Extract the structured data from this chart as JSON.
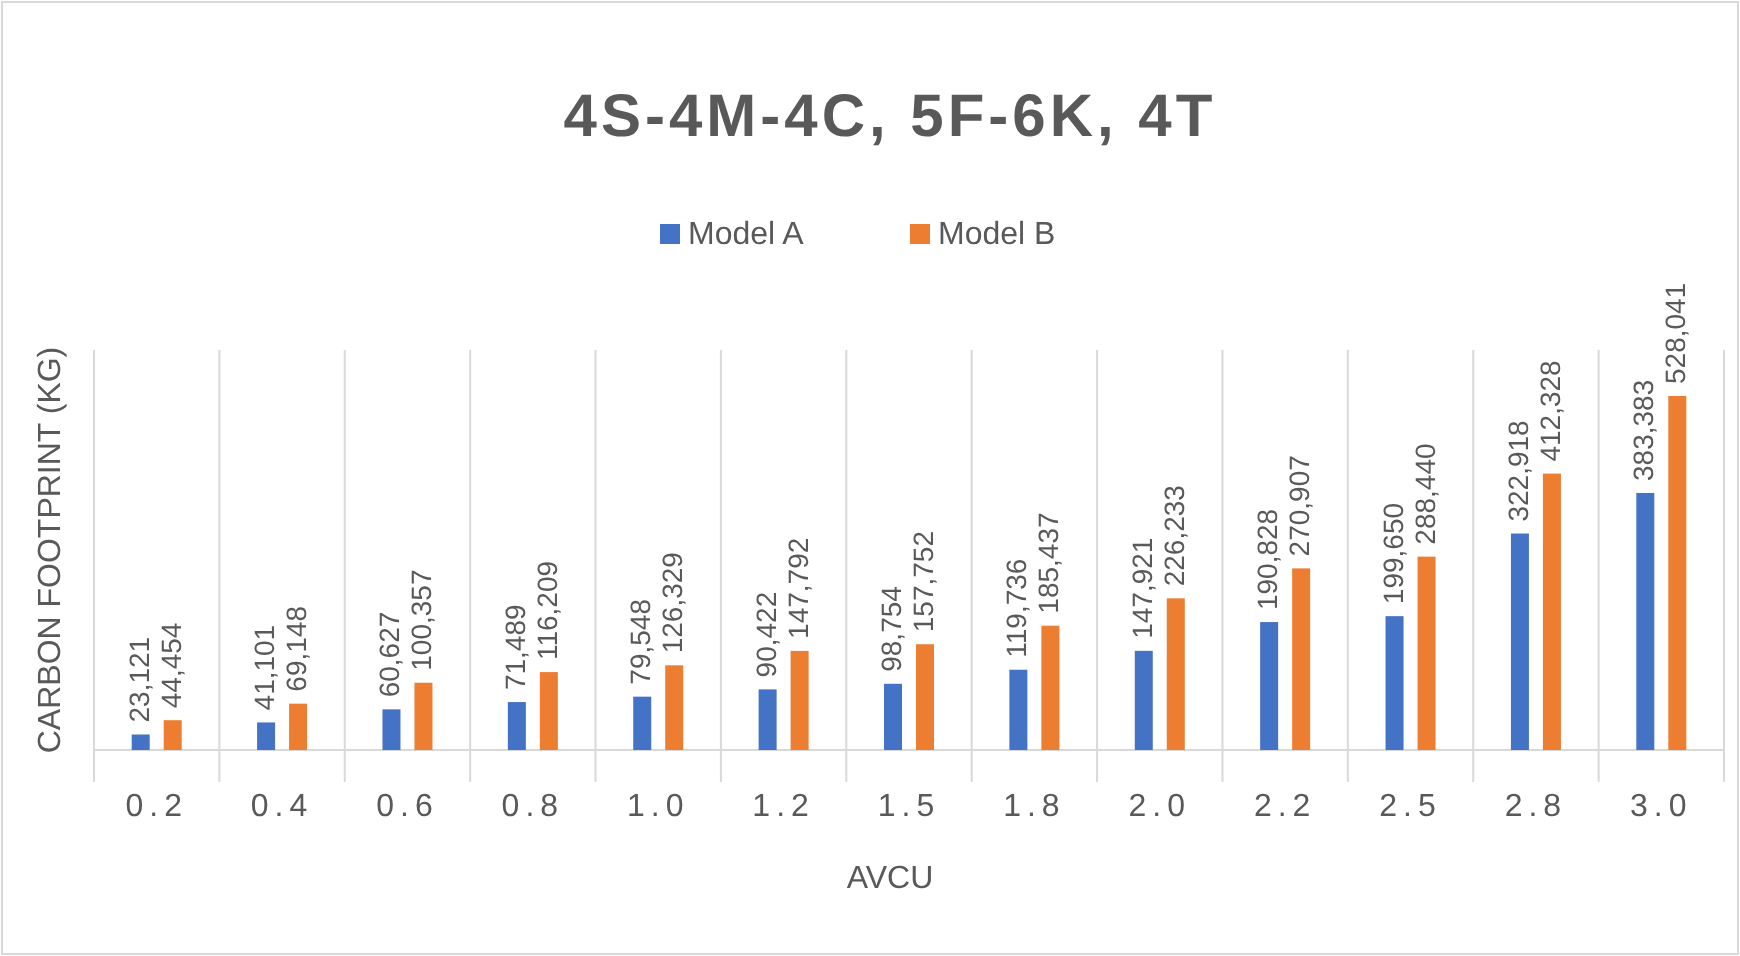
{
  "chart_data": {
    "type": "bar",
    "title": "4S-4M-4C, 5F-6K, 4T",
    "xlabel": "AVCU",
    "ylabel": "CARBON FOOTPRINT (KG)",
    "categories": [
      "0.2",
      "0.4",
      "0.6",
      "0.8",
      "1.0",
      "1.2",
      "1.5",
      "1.8",
      "2.0",
      "2.2",
      "2.5",
      "2.8",
      "3.0"
    ],
    "legend": "top",
    "series": [
      {
        "name": "Model A",
        "color": "#4472c4",
        "values": [
          23121,
          41101,
          60627,
          71489,
          79548,
          90422,
          98754,
          119736,
          147921,
          190828,
          199650,
          322918,
          383383
        ],
        "value_labels": [
          "23,121",
          "41,101",
          "60,627",
          "71,489",
          "79,548",
          "90,422",
          "98,754",
          "119,736",
          "147,921",
          "190,828",
          "199,650",
          "322,918",
          "383,383"
        ]
      },
      {
        "name": "Model B",
        "color": "#ed7d31",
        "values": [
          44454,
          69148,
          100357,
          116209,
          126329,
          147792,
          157752,
          185437,
          226233,
          270907,
          288440,
          412328,
          528041
        ],
        "value_labels": [
          "44,454",
          "69,148",
          "100,357",
          "116,209",
          "126,329",
          "147,792",
          "157,752",
          "185,437",
          "226,233",
          "270,907",
          "288,440",
          "412,328",
          "528,041"
        ]
      }
    ]
  }
}
